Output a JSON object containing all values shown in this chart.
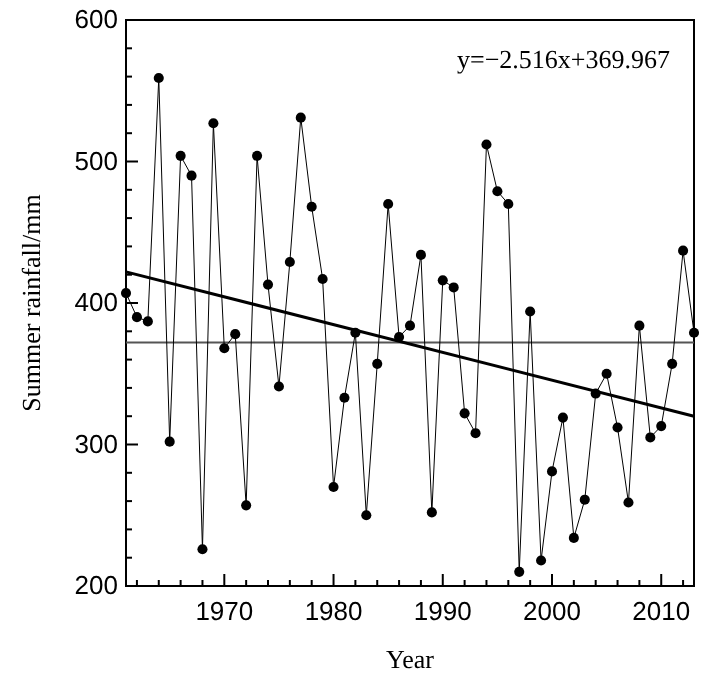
{
  "chart_data": {
    "type": "line",
    "xlabel": "Year",
    "ylabel": "Summer rainfall/mm",
    "annotations": [
      "y=−2.516x+369.967"
    ],
    "x": [
      1961,
      1962,
      1963,
      1964,
      1965,
      1966,
      1967,
      1968,
      1969,
      1970,
      1971,
      1972,
      1973,
      1974,
      1975,
      1976,
      1977,
      1978,
      1979,
      1980,
      1981,
      1982,
      1983,
      1984,
      1985,
      1986,
      1987,
      1988,
      1989,
      1990,
      1991,
      1992,
      1993,
      1994,
      1995,
      1996,
      1997,
      1998,
      1999,
      2000,
      2001,
      2002,
      2003,
      2004,
      2005,
      2006,
      2007,
      2008,
      2009,
      2010,
      2011,
      2012,
      2013
    ],
    "series": [
      {
        "color": "#000000",
        "marker": "circle",
        "values": [
          407,
          390,
          387,
          559,
          302,
          504,
          490,
          226,
          527,
          368,
          378,
          257,
          504,
          413,
          341,
          429,
          531,
          468,
          417,
          270,
          333,
          379,
          250,
          357,
          470,
          376,
          384,
          434,
          252,
          416,
          411,
          322,
          308,
          512,
          479,
          470,
          210,
          394,
          218,
          281,
          319,
          234,
          261,
          336,
          350,
          312,
          259,
          384,
          305,
          313,
          357,
          437,
          379
        ]
      },
      {
        "type": "line",
        "color": "#000000",
        "marker": "none",
        "x": [
          1961,
          2013
        ],
        "values": [
          422,
          320
        ]
      }
    ],
    "ref_lines": [
      {
        "axis": "y",
        "value": 372,
        "color": "#555555"
      }
    ],
    "xlim": [
      1961,
      2013
    ],
    "xticks": [
      {
        "value": 1962,
        "label": null
      },
      {
        "value": 1964,
        "label": null
      },
      {
        "value": 1966,
        "label": null
      },
      {
        "value": 1968,
        "label": null
      },
      1970,
      {
        "value": 1972,
        "label": null
      },
      {
        "value": 1974,
        "label": null
      },
      {
        "value": 1976,
        "label": null
      },
      {
        "value": 1978,
        "label": null
      },
      1980,
      {
        "value": 1982,
        "label": null
      },
      {
        "value": 1984,
        "label": null
      },
      {
        "value": 1986,
        "label": null
      },
      {
        "value": 1988,
        "label": null
      },
      1990,
      {
        "value": 1992,
        "label": null
      },
      {
        "value": 1994,
        "label": null
      },
      {
        "value": 1996,
        "label": null
      },
      {
        "value": 1998,
        "label": null
      },
      2000,
      {
        "value": 2002,
        "label": null
      },
      {
        "value": 2004,
        "label": null
      },
      {
        "value": 2006,
        "label": null
      },
      {
        "value": 2008,
        "label": null
      },
      2010,
      {
        "value": 2012,
        "label": null
      }
    ],
    "ylim": [
      200,
      600
    ],
    "yticks": [
      200,
      {
        "value": 220,
        "label": null
      },
      {
        "value": 240,
        "label": null
      },
      {
        "value": 260,
        "label": null
      },
      {
        "value": 280,
        "label": null
      },
      300,
      {
        "value": 320,
        "label": null
      },
      {
        "value": 340,
        "label": null
      },
      {
        "value": 360,
        "label": null
      },
      {
        "value": 380,
        "label": null
      },
      400,
      {
        "value": 420,
        "label": null
      },
      {
        "value": 440,
        "label": null
      },
      {
        "value": 460,
        "label": null
      },
      {
        "value": 480,
        "label": null
      },
      500,
      {
        "value": 520,
        "label": null
      },
      {
        "value": 540,
        "label": null
      },
      {
        "value": 560,
        "label": null
      },
      {
        "value": 580,
        "label": null
      },
      600
    ],
    "grid": false
  }
}
